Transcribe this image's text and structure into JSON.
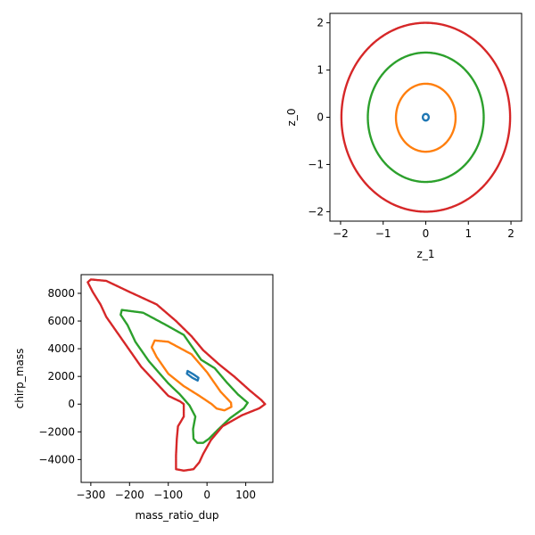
{
  "figure": "corner plot of latent-space and parameter-space contours",
  "colors": [
    "#1f77b4",
    "#ff7f0e",
    "#2ca02c",
    "#d62728"
  ],
  "chart_data": [
    {
      "type": "line",
      "id": "latent",
      "xlabel": "z_1",
      "ylabel": "z_0",
      "xlim": [
        -2.25,
        2.25
      ],
      "ylim": [
        -2.2,
        2.2
      ],
      "xticks": [
        -2,
        -1,
        0,
        1,
        2
      ],
      "yticks": [
        -2,
        -1,
        0,
        1,
        2
      ],
      "xtick_labels": [
        "−2",
        "−1",
        "0",
        "1",
        "2"
      ],
      "ytick_labels": [
        "−2",
        "−1",
        "0",
        "1",
        "2"
      ],
      "grid": false,
      "series": [
        {
          "color": "#1f77b4",
          "shape": "circle",
          "center": [
            0,
            0
          ],
          "r": [
            0.07,
            0.07
          ]
        },
        {
          "color": "#ff7f0e",
          "shape": "circle",
          "center": [
            0,
            -0.01
          ],
          "r": [
            0.7,
            0.72
          ]
        },
        {
          "color": "#2ca02c",
          "shape": "circle",
          "center": [
            0,
            0
          ],
          "r": [
            1.36,
            1.37
          ]
        },
        {
          "color": "#d62728",
          "shape": "circle",
          "center": [
            0,
            0
          ],
          "r": [
            1.98,
            2.0
          ]
        }
      ]
    },
    {
      "type": "line",
      "id": "params",
      "xlabel": "mass_ratio_dup",
      "ylabel": "chirp_mass",
      "xlim": [
        -325,
        170
      ],
      "ylim": [
        -5650,
        9350
      ],
      "xticks": [
        -300,
        -200,
        -100,
        0,
        100
      ],
      "yticks": [
        -4000,
        -2000,
        0,
        2000,
        4000,
        6000,
        8000
      ],
      "xtick_labels": [
        "−300",
        "−200",
        "−100",
        "0",
        "100"
      ],
      "ytick_labels": [
        "−4000",
        "−2000",
        "0",
        "2000",
        "4000",
        "6000",
        "8000"
      ],
      "grid": false,
      "series": [
        {
          "color": "#1f77b4",
          "shape": "path",
          "points": [
            [
              -50,
              2400
            ],
            [
              -35,
              2150
            ],
            [
              -22,
              1900
            ],
            [
              -24,
              1700
            ],
            [
              -38,
              1900
            ],
            [
              -52,
              2200
            ],
            [
              -50,
              2400
            ]
          ]
        },
        {
          "color": "#ff7f0e",
          "shape": "path",
          "points": [
            [
              -135,
              4600
            ],
            [
              -100,
              4500
            ],
            [
              -40,
              3600
            ],
            [
              0,
              2300
            ],
            [
              35,
              900
            ],
            [
              62,
              100
            ],
            [
              63,
              -200
            ],
            [
              45,
              -450
            ],
            [
              25,
              -320
            ],
            [
              12,
              0
            ],
            [
              -20,
              600
            ],
            [
              -60,
              1300
            ],
            [
              -100,
              2200
            ],
            [
              -130,
              3400
            ],
            [
              -143,
              4100
            ],
            [
              -135,
              4600
            ]
          ]
        },
        {
          "color": "#2ca02c",
          "shape": "path",
          "points": [
            [
              -220,
              6800
            ],
            [
              -165,
              6600
            ],
            [
              -105,
              5700
            ],
            [
              -60,
              5000
            ],
            [
              -15,
              3200
            ],
            [
              20,
              2600
            ],
            [
              50,
              1600
            ],
            [
              80,
              700
            ],
            [
              105,
              100
            ],
            [
              95,
              -300
            ],
            [
              60,
              -1000
            ],
            [
              30,
              -1800
            ],
            [
              5,
              -2500
            ],
            [
              -10,
              -2800
            ],
            [
              -25,
              -2800
            ],
            [
              -35,
              -2500
            ],
            [
              -36,
              -1800
            ],
            [
              -30,
              -900
            ],
            [
              -45,
              -100
            ],
            [
              -70,
              700
            ],
            [
              -100,
              1500
            ],
            [
              -150,
              3100
            ],
            [
              -185,
              4500
            ],
            [
              -205,
              5700
            ],
            [
              -223,
              6450
            ],
            [
              -220,
              6800
            ]
          ]
        },
        {
          "color": "#d62728",
          "shape": "path",
          "points": [
            [
              -300,
              9000
            ],
            [
              -260,
              8900
            ],
            [
              -200,
              8100
            ],
            [
              -130,
              7200
            ],
            [
              -80,
              6000
            ],
            [
              -40,
              4900
            ],
            [
              -10,
              3900
            ],
            [
              30,
              2900
            ],
            [
              70,
              2000
            ],
            [
              110,
              1000
            ],
            [
              140,
              300
            ],
            [
              150,
              0
            ],
            [
              135,
              -300
            ],
            [
              90,
              -800
            ],
            [
              40,
              -1600
            ],
            [
              10,
              -2600
            ],
            [
              -10,
              -3600
            ],
            [
              -20,
              -4200
            ],
            [
              -35,
              -4700
            ],
            [
              -60,
              -4800
            ],
            [
              -80,
              -4700
            ],
            [
              -80,
              -3700
            ],
            [
              -78,
              -2500
            ],
            [
              -75,
              -1600
            ],
            [
              -60,
              -900
            ],
            [
              -60,
              0
            ],
            [
              -70,
              200
            ],
            [
              -100,
              600
            ],
            [
              -130,
              1500
            ],
            [
              -170,
              2700
            ],
            [
              -210,
              4300
            ],
            [
              -260,
              6300
            ],
            [
              -275,
              7200
            ],
            [
              -295,
              8100
            ],
            [
              -308,
              8800
            ],
            [
              -300,
              9000
            ]
          ]
        }
      ]
    }
  ]
}
